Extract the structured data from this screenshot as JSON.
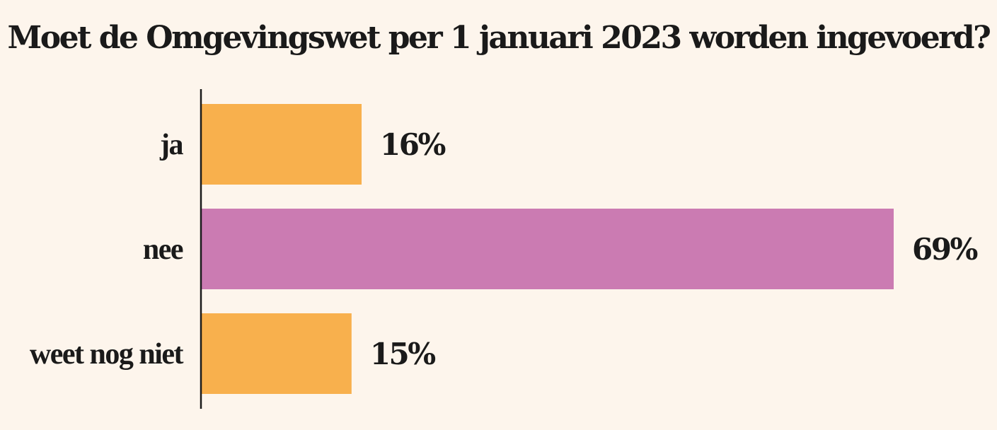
{
  "chart_data": {
    "type": "bar",
    "orientation": "horizontal",
    "title": "Moet de Omgevingswet per 1 januari 2023 worden ingevoerd?",
    "categories": [
      "ja",
      "nee",
      "weet nog niet"
    ],
    "values": [
      16,
      69,
      15
    ],
    "value_labels": [
      "16%",
      "69%",
      "15%"
    ],
    "colors": [
      "#f8b04d",
      "#cb7bb2",
      "#f8b04d"
    ],
    "xlim": [
      0,
      69
    ],
    "grid": false,
    "legend": "none"
  },
  "colors": {
    "background": "#fdf5ec",
    "text": "#1a1a1a",
    "axis": "#1a1a1a"
  }
}
